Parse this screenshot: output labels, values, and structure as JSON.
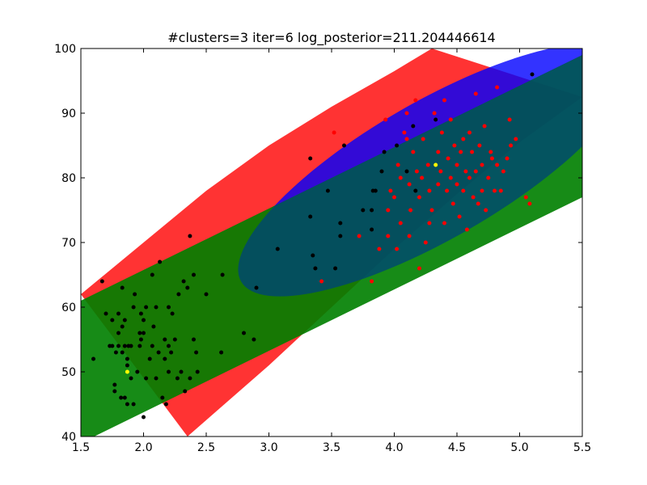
{
  "chart_data": {
    "type": "scatter",
    "title": "#clusters=3 iter=6 log_posterior=211.204446614",
    "xlabel": "",
    "ylabel": "",
    "xlim": [
      1.5,
      5.5
    ],
    "ylim": [
      40,
      100
    ],
    "x_ticks": [
      "1.5",
      "2.0",
      "2.5",
      "3.0",
      "3.5",
      "4.0",
      "4.5",
      "5.0",
      "5.5"
    ],
    "y_ticks": [
      "40",
      "50",
      "60",
      "70",
      "80",
      "90",
      "100"
    ],
    "grid": false,
    "legend": "none",
    "colors": {
      "red_band": "#ff0000",
      "green_band": "#008000",
      "blue_ellipse": "#0000ff",
      "black_points": "#000000",
      "red_points": "#ff0000",
      "center_points": "#ffff00"
    },
    "regions": [
      {
        "name": "red",
        "type": "band",
        "color": "#ff0000",
        "opacity": 0.8,
        "upper": [
          [
            1.5,
            62
          ],
          [
            2.0,
            70
          ],
          [
            2.5,
            78
          ],
          [
            3.0,
            85
          ],
          [
            3.5,
            91
          ],
          [
            4.0,
            96.5
          ],
          [
            4.3,
            100
          ]
        ],
        "lower": [
          [
            2.35,
            40
          ],
          [
            3.0,
            51
          ],
          [
            3.5,
            60
          ],
          [
            4.0,
            69
          ],
          [
            4.5,
            77.5
          ],
          [
            5.0,
            85.5
          ],
          [
            5.5,
            92.5
          ]
        ]
      },
      {
        "name": "green",
        "type": "band",
        "color": "#008000",
        "opacity": 0.8,
        "upper": [
          [
            1.5,
            61
          ],
          [
            5.5,
            99
          ]
        ],
        "lower": [
          [
            1.5,
            39
          ],
          [
            5.5,
            77
          ]
        ]
      },
      {
        "name": "blue",
        "type": "ellipse",
        "color": "#0000ff",
        "opacity": 0.8,
        "center": [
          4.32,
          81.2
        ],
        "semi_axis_a": 1.0,
        "semi_axis_b": 10.6,
        "angle_deg": 30
      }
    ],
    "series": [
      {
        "color": "#000000",
        "points": [
          [
            1.6,
            52
          ],
          [
            1.67,
            64
          ],
          [
            1.7,
            59
          ],
          [
            1.73,
            54
          ],
          [
            1.75,
            54
          ],
          [
            1.75,
            58
          ],
          [
            1.77,
            48
          ],
          [
            1.77,
            47
          ],
          [
            1.78,
            53
          ],
          [
            1.8,
            54
          ],
          [
            1.8,
            56
          ],
          [
            1.8,
            59
          ],
          [
            1.82,
            46
          ],
          [
            1.83,
            53
          ],
          [
            1.83,
            57
          ],
          [
            1.83,
            63
          ],
          [
            1.85,
            46
          ],
          [
            1.85,
            54
          ],
          [
            1.85,
            58
          ],
          [
            1.87,
            51
          ],
          [
            1.87,
            45
          ],
          [
            1.87,
            52
          ],
          [
            1.88,
            54
          ],
          [
            1.9,
            49
          ],
          [
            1.9,
            54
          ],
          [
            1.92,
            45
          ],
          [
            1.92,
            60
          ],
          [
            1.93,
            62
          ],
          [
            1.95,
            50
          ],
          [
            1.97,
            54
          ],
          [
            1.97,
            56
          ],
          [
            1.98,
            59
          ],
          [
            1.98,
            55
          ],
          [
            2.0,
            43
          ],
          [
            2.0,
            56
          ],
          [
            2.0,
            58
          ],
          [
            2.02,
            49
          ],
          [
            2.02,
            60
          ],
          [
            2.05,
            52
          ],
          [
            2.07,
            54
          ],
          [
            2.07,
            65
          ],
          [
            2.08,
            57
          ],
          [
            2.1,
            49
          ],
          [
            2.1,
            60
          ],
          [
            2.12,
            53
          ],
          [
            2.13,
            67
          ],
          [
            2.15,
            46
          ],
          [
            2.17,
            52
          ],
          [
            2.17,
            55
          ],
          [
            2.18,
            45
          ],
          [
            2.2,
            50
          ],
          [
            2.2,
            54
          ],
          [
            2.2,
            60
          ],
          [
            2.22,
            53
          ],
          [
            2.23,
            59
          ],
          [
            2.25,
            55
          ],
          [
            2.27,
            49
          ],
          [
            2.28,
            62
          ],
          [
            2.3,
            50
          ],
          [
            2.32,
            64
          ],
          [
            2.33,
            47
          ],
          [
            2.35,
            63
          ],
          [
            2.37,
            49
          ],
          [
            2.37,
            71
          ],
          [
            2.4,
            55
          ],
          [
            2.4,
            65
          ],
          [
            2.42,
            53
          ],
          [
            2.43,
            50
          ],
          [
            2.5,
            62
          ],
          [
            2.62,
            53
          ],
          [
            2.63,
            65
          ],
          [
            2.8,
            56
          ],
          [
            2.88,
            55
          ],
          [
            2.9,
            63
          ],
          [
            3.07,
            69
          ],
          [
            3.33,
            83
          ],
          [
            3.33,
            74
          ],
          [
            3.35,
            68
          ],
          [
            3.37,
            66
          ],
          [
            3.47,
            78
          ],
          [
            3.53,
            66
          ],
          [
            3.57,
            71
          ],
          [
            3.57,
            73
          ],
          [
            3.6,
            85
          ],
          [
            3.75,
            75
          ],
          [
            3.82,
            75
          ],
          [
            3.82,
            72
          ],
          [
            3.83,
            78
          ],
          [
            3.85,
            78
          ],
          [
            3.9,
            81
          ],
          [
            3.92,
            84
          ],
          [
            4.02,
            85
          ],
          [
            4.1,
            81
          ],
          [
            4.15,
            88
          ],
          [
            4.17,
            78
          ],
          [
            4.33,
            89
          ],
          [
            5.1,
            96
          ]
        ]
      },
      {
        "color": "#ff0000",
        "points": [
          [
            3.42,
            64
          ],
          [
            3.52,
            87
          ],
          [
            3.72,
            71
          ],
          [
            3.82,
            64
          ],
          [
            3.93,
            89
          ],
          [
            3.95,
            71
          ],
          [
            3.97,
            78
          ],
          [
            4.0,
            77
          ],
          [
            4.02,
            69
          ],
          [
            4.03,
            82
          ],
          [
            4.05,
            80
          ],
          [
            4.08,
            87
          ],
          [
            4.1,
            86
          ],
          [
            4.1,
            90
          ],
          [
            4.12,
            79
          ],
          [
            4.13,
            75
          ],
          [
            4.15,
            84
          ],
          [
            4.17,
            92
          ],
          [
            4.18,
            81
          ],
          [
            4.2,
            77
          ],
          [
            4.22,
            80
          ],
          [
            4.23,
            86
          ],
          [
            4.25,
            70
          ],
          [
            4.27,
            82
          ],
          [
            4.28,
            78
          ],
          [
            4.3,
            75
          ],
          [
            4.32,
            90
          ],
          [
            4.35,
            79
          ],
          [
            4.35,
            84
          ],
          [
            4.37,
            81
          ],
          [
            4.38,
            87
          ],
          [
            4.4,
            92
          ],
          [
            4.4,
            73
          ],
          [
            4.42,
            78
          ],
          [
            4.43,
            83
          ],
          [
            4.45,
            80
          ],
          [
            4.45,
            89
          ],
          [
            4.47,
            76
          ],
          [
            4.48,
            85
          ],
          [
            4.5,
            82
          ],
          [
            4.5,
            79
          ],
          [
            4.52,
            74
          ],
          [
            4.53,
            84
          ],
          [
            4.55,
            78
          ],
          [
            4.55,
            86
          ],
          [
            4.57,
            81
          ],
          [
            4.58,
            72
          ],
          [
            4.6,
            80
          ],
          [
            4.6,
            87
          ],
          [
            4.62,
            84
          ],
          [
            4.63,
            77
          ],
          [
            4.65,
            81
          ],
          [
            4.65,
            93
          ],
          [
            4.67,
            76
          ],
          [
            4.68,
            85
          ],
          [
            4.7,
            82
          ],
          [
            4.7,
            78
          ],
          [
            4.72,
            88
          ],
          [
            4.73,
            75
          ],
          [
            4.75,
            80
          ],
          [
            4.77,
            84
          ],
          [
            4.78,
            83
          ],
          [
            4.8,
            78
          ],
          [
            4.82,
            82
          ],
          [
            4.82,
            94
          ],
          [
            4.85,
            78
          ],
          [
            4.87,
            81
          ],
          [
            4.9,
            83
          ],
          [
            4.92,
            89
          ],
          [
            4.93,
            85
          ],
          [
            4.97,
            86
          ],
          [
            5.05,
            77
          ],
          [
            5.08,
            76
          ],
          [
            3.88,
            69
          ],
          [
            3.95,
            75
          ],
          [
            4.05,
            73
          ],
          [
            4.12,
            71
          ],
          [
            4.2,
            66
          ],
          [
            4.28,
            73
          ]
        ]
      },
      {
        "color": "#ffff00",
        "points": [
          [
            1.87,
            50
          ],
          [
            4.33,
            82
          ]
        ]
      }
    ]
  }
}
